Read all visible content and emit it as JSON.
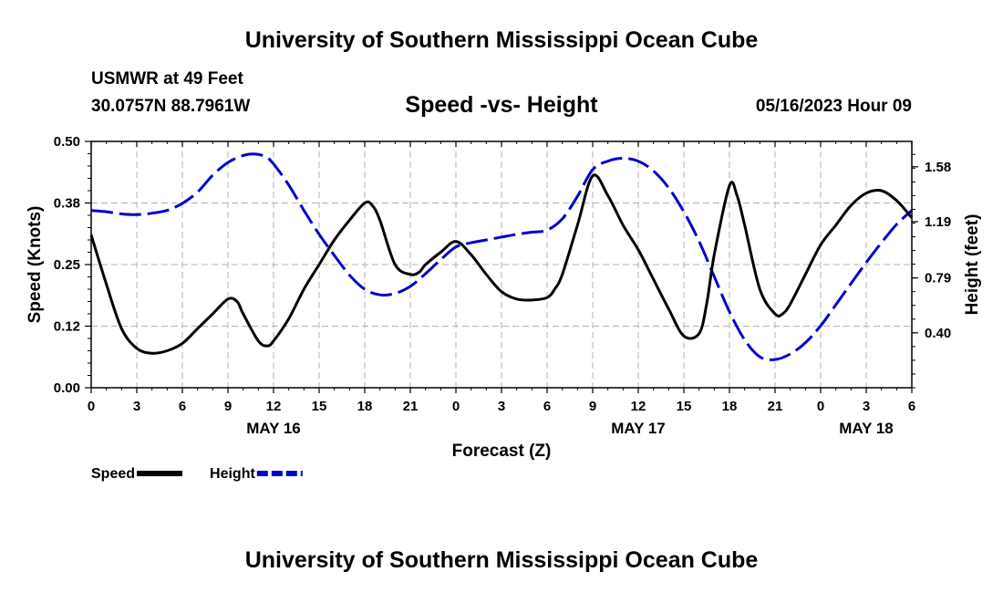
{
  "header": {
    "title": "University of Southern Mississippi Ocean Cube",
    "station": "USMWR at 49 Feet",
    "coords": "30.0757N  88.7961W",
    "subtitle": "Speed -vs- Height",
    "datetime": "05/16/2023 Hour 09"
  },
  "footer": {
    "title": "University of Southern Mississippi Ocean Cube"
  },
  "chart_data": {
    "type": "line",
    "title": "Speed -vs- Height",
    "xlabel": "Forecast (Z)",
    "ylabel": "Speed (Knots)",
    "y2label": "Height (feet)",
    "x_unit": "hours from 00Z May 16",
    "xlim": [
      0,
      54
    ],
    "x_ticks": [
      0,
      3,
      6,
      9,
      12,
      15,
      18,
      21,
      24,
      27,
      30,
      33,
      36,
      39,
      42,
      45,
      48,
      51,
      54
    ],
    "x_tick_labels": [
      "0",
      "3",
      "6",
      "9",
      "12",
      "15",
      "18",
      "21",
      "0",
      "3",
      "6",
      "9",
      "12",
      "15",
      "18",
      "21",
      "0",
      "3",
      "6"
    ],
    "date_labels": [
      {
        "x": 12,
        "label": "MAY 16"
      },
      {
        "x": 36,
        "label": "MAY 17"
      },
      {
        "x": 51,
        "label": "MAY 18"
      }
    ],
    "y1lim": [
      0,
      0.5
    ],
    "y1_ticks": [
      0,
      0.125,
      0.25,
      0.375,
      0.5
    ],
    "y1_tick_labels": [
      "0.00",
      "0.12",
      "0.25",
      "0.38",
      "0.50"
    ],
    "y2lim": [
      0.01,
      1.76
    ],
    "y2_ticks": [
      0.4,
      0.79,
      1.19,
      1.58
    ],
    "y2_tick_labels": [
      "0.40",
      "0.79",
      "1.19",
      "1.58"
    ],
    "grid": true,
    "series": [
      {
        "name": "Speed",
        "axis": "left",
        "color": "#000000",
        "dash": "solid",
        "x": [
          0,
          1,
          2,
          3,
          4,
          5,
          6,
          7,
          8,
          9,
          9.6,
          10,
          11,
          11.6,
          12,
          13,
          14,
          15,
          16,
          17,
          18,
          18.5,
          19,
          20,
          21,
          21.6,
          22,
          23,
          24,
          25,
          26,
          27,
          28,
          29,
          30,
          30.5,
          31,
          32,
          33,
          34,
          35,
          36,
          37,
          38,
          39,
          40,
          40.5,
          41,
          42,
          42.5,
          43,
          44,
          45,
          45.5,
          46,
          47,
          48,
          49,
          50,
          51,
          52,
          53,
          54
        ],
        "y": [
          0.31,
          0.21,
          0.12,
          0.08,
          0.07,
          0.075,
          0.09,
          0.12,
          0.15,
          0.18,
          0.175,
          0.15,
          0.095,
          0.085,
          0.095,
          0.14,
          0.2,
          0.25,
          0.3,
          0.34,
          0.375,
          0.37,
          0.34,
          0.25,
          0.23,
          0.235,
          0.25,
          0.275,
          0.297,
          0.27,
          0.23,
          0.195,
          0.18,
          0.178,
          0.183,
          0.2,
          0.23,
          0.33,
          0.43,
          0.39,
          0.33,
          0.28,
          0.22,
          0.16,
          0.105,
          0.11,
          0.17,
          0.27,
          0.41,
          0.39,
          0.33,
          0.2,
          0.15,
          0.15,
          0.17,
          0.23,
          0.29,
          0.33,
          0.37,
          0.395,
          0.4,
          0.38,
          0.345
        ]
      },
      {
        "name": "Height",
        "axis": "right",
        "color": "#0000cc",
        "dash": "dashed",
        "x": [
          0,
          1,
          2,
          3,
          4,
          5,
          6,
          7,
          8,
          9,
          10,
          10.8,
          11.5,
          12,
          13,
          14,
          15,
          16,
          17,
          18,
          19,
          20,
          21,
          22,
          23,
          24,
          25,
          26,
          27,
          28,
          29,
          30,
          31,
          32,
          33,
          34,
          35,
          36,
          37,
          38,
          39,
          40,
          41,
          42,
          43,
          44,
          45,
          46,
          47,
          48,
          49,
          50,
          51,
          52,
          53,
          54
        ],
        "y": [
          1.27,
          1.26,
          1.245,
          1.24,
          1.25,
          1.27,
          1.32,
          1.4,
          1.52,
          1.61,
          1.66,
          1.67,
          1.65,
          1.6,
          1.45,
          1.27,
          1.1,
          0.95,
          0.81,
          0.71,
          0.67,
          0.68,
          0.73,
          0.82,
          0.92,
          1.01,
          1.04,
          1.06,
          1.08,
          1.1,
          1.115,
          1.13,
          1.21,
          1.37,
          1.56,
          1.62,
          1.64,
          1.62,
          1.55,
          1.43,
          1.26,
          1.05,
          0.8,
          0.55,
          0.35,
          0.23,
          0.21,
          0.25,
          0.33,
          0.45,
          0.6,
          0.75,
          0.9,
          1.04,
          1.17,
          1.27
        ]
      }
    ],
    "legend": [
      {
        "label": "Speed",
        "color": "#000000",
        "dash": "solid"
      },
      {
        "label": "Height",
        "color": "#0000cc",
        "dash": "dashed"
      }
    ],
    "legend_position": "bottom-left"
  }
}
